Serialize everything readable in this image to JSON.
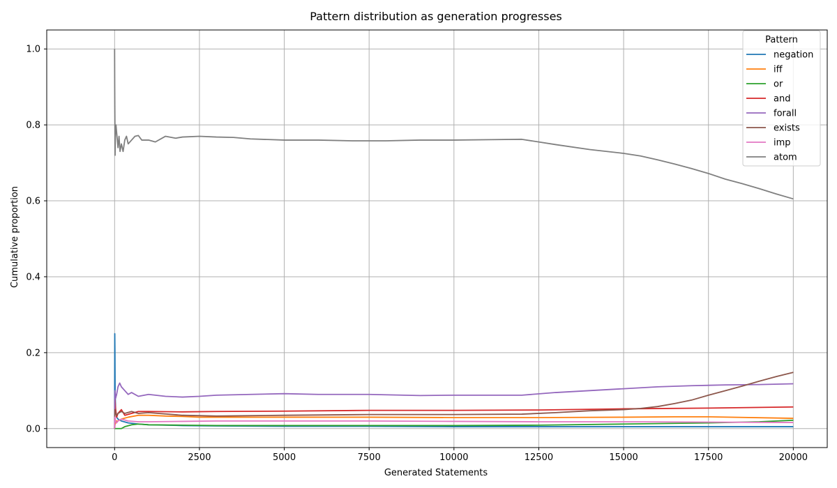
{
  "chart_data": {
    "type": "line",
    "title": "Pattern distribution as generation progresses",
    "xlabel": "Generated Statements",
    "ylabel": "Cumulative proportion",
    "xlim": [
      -2000,
      21000
    ],
    "ylim": [
      -0.05,
      1.05
    ],
    "xticks": [
      0,
      2500,
      5000,
      7500,
      10000,
      12500,
      15000,
      17500,
      20000
    ],
    "xtick_labels": [
      "0",
      "2500",
      "5000",
      "7500",
      "10000",
      "12500",
      "15000",
      "17500",
      "20000"
    ],
    "yticks": [
      0.0,
      0.2,
      0.4,
      0.6,
      0.8,
      1.0
    ],
    "ytick_labels": [
      "0.0",
      "0.2",
      "0.4",
      "0.6",
      "0.8",
      "1.0"
    ],
    "grid": true,
    "legend_title": "Pattern",
    "legend_position": "top-right",
    "series": [
      {
        "name": "negation",
        "color": "#1f77b4",
        "x": [
          0,
          5,
          10,
          15,
          30,
          60,
          100,
          200,
          400,
          700,
          1000,
          2000,
          3000,
          5000,
          7500,
          10000,
          12500,
          15000,
          17500,
          20000
        ],
        "y": [
          0.0,
          0.25,
          0.2,
          0.1,
          0.05,
          0.03,
          0.025,
          0.02,
          0.015,
          0.012,
          0.01,
          0.008,
          0.007,
          0.006,
          0.006,
          0.005,
          0.005,
          0.005,
          0.005,
          0.005
        ]
      },
      {
        "name": "iff",
        "color": "#ff7f0e",
        "x": [
          0,
          10,
          30,
          60,
          100,
          200,
          400,
          700,
          1000,
          1500,
          2000,
          2500,
          3000,
          5000,
          7500,
          10000,
          12500,
          15000,
          16500,
          17500,
          20000
        ],
        "y": [
          0.0,
          0.01,
          0.015,
          0.02,
          0.02,
          0.025,
          0.03,
          0.035,
          0.035,
          0.033,
          0.032,
          0.03,
          0.03,
          0.03,
          0.03,
          0.029,
          0.029,
          0.03,
          0.031,
          0.031,
          0.027
        ]
      },
      {
        "name": "or",
        "color": "#2ca02c",
        "x": [
          0,
          100,
          200,
          300,
          500,
          700,
          1000,
          2000,
          3000,
          5000,
          7500,
          10000,
          12500,
          15000,
          17500,
          19000,
          20000
        ],
        "y": [
          0.0,
          0.0,
          0.0,
          0.005,
          0.01,
          0.012,
          0.01,
          0.009,
          0.008,
          0.008,
          0.008,
          0.008,
          0.009,
          0.012,
          0.015,
          0.018,
          0.022
        ]
      },
      {
        "name": "and",
        "color": "#d62728",
        "x": [
          0,
          10,
          30,
          60,
          100,
          200,
          300,
          500,
          700,
          1000,
          2000,
          3000,
          5000,
          7500,
          10000,
          12500,
          15000,
          17500,
          20000
        ],
        "y": [
          0.0,
          0.08,
          0.05,
          0.03,
          0.04,
          0.05,
          0.035,
          0.04,
          0.045,
          0.045,
          0.044,
          0.045,
          0.046,
          0.048,
          0.048,
          0.049,
          0.052,
          0.054,
          0.057
        ]
      },
      {
        "name": "forall",
        "color": "#9467bd",
        "x": [
          0,
          10,
          30,
          60,
          100,
          150,
          200,
          300,
          400,
          500,
          700,
          1000,
          1500,
          2000,
          2500,
          3000,
          4000,
          5000,
          6000,
          7500,
          9000,
          10000,
          12000,
          13000,
          14000,
          15000,
          16000,
          17000,
          18000,
          19000,
          20000
        ],
        "y": [
          0.0,
          0.1,
          0.08,
          0.09,
          0.11,
          0.12,
          0.11,
          0.1,
          0.09,
          0.095,
          0.085,
          0.09,
          0.085,
          0.083,
          0.085,
          0.088,
          0.09,
          0.092,
          0.09,
          0.09,
          0.087,
          0.088,
          0.088,
          0.095,
          0.1,
          0.105,
          0.11,
          0.113,
          0.115,
          0.116,
          0.118
        ]
      },
      {
        "name": "exists",
        "color": "#8c564b",
        "x": [
          0,
          10,
          30,
          60,
          100,
          200,
          300,
          500,
          700,
          1000,
          2000,
          3000,
          5000,
          7500,
          10000,
          12000,
          13000,
          14000,
          15000,
          15500,
          16000,
          16500,
          17000,
          17500,
          18000,
          18500,
          19000,
          19500,
          20000
        ],
        "y": [
          0.0,
          0.05,
          0.04,
          0.035,
          0.04,
          0.045,
          0.04,
          0.045,
          0.04,
          0.042,
          0.035,
          0.033,
          0.035,
          0.037,
          0.037,
          0.038,
          0.042,
          0.047,
          0.05,
          0.053,
          0.058,
          0.066,
          0.075,
          0.088,
          0.1,
          0.112,
          0.125,
          0.137,
          0.148
        ]
      },
      {
        "name": "imp",
        "color": "#e377c2",
        "x": [
          0,
          10,
          30,
          60,
          100,
          200,
          400,
          700,
          1000,
          2000,
          3000,
          5000,
          7500,
          10000,
          12500,
          15000,
          17500,
          20000
        ],
        "y": [
          0.0,
          0.03,
          0.02,
          0.015,
          0.02,
          0.025,
          0.02,
          0.018,
          0.018,
          0.019,
          0.02,
          0.02,
          0.02,
          0.019,
          0.018,
          0.018,
          0.017,
          0.016
        ]
      },
      {
        "name": "atom",
        "color": "#7f7f7f",
        "x": [
          0,
          3,
          6,
          10,
          15,
          20,
          30,
          40,
          60,
          80,
          100,
          130,
          160,
          200,
          250,
          300,
          350,
          400,
          500,
          600,
          700,
          800,
          1000,
          1200,
          1500,
          1800,
          2000,
          2500,
          3000,
          3500,
          4000,
          5000,
          6000,
          7000,
          8000,
          9000,
          10000,
          11000,
          12000,
          12500,
          13000,
          14000,
          15000,
          15500,
          16000,
          16500,
          17000,
          17500,
          18000,
          18500,
          19000,
          19500,
          20000
        ],
        "y": [
          1.0,
          0.91,
          0.85,
          0.8,
          0.72,
          0.76,
          0.79,
          0.8,
          0.78,
          0.76,
          0.74,
          0.77,
          0.73,
          0.75,
          0.73,
          0.76,
          0.77,
          0.75,
          0.76,
          0.77,
          0.772,
          0.76,
          0.76,
          0.755,
          0.77,
          0.765,
          0.768,
          0.77,
          0.768,
          0.767,
          0.763,
          0.76,
          0.76,
          0.758,
          0.758,
          0.76,
          0.76,
          0.761,
          0.762,
          0.755,
          0.748,
          0.735,
          0.725,
          0.718,
          0.708,
          0.697,
          0.685,
          0.672,
          0.657,
          0.645,
          0.632,
          0.618,
          0.605
        ]
      }
    ]
  }
}
